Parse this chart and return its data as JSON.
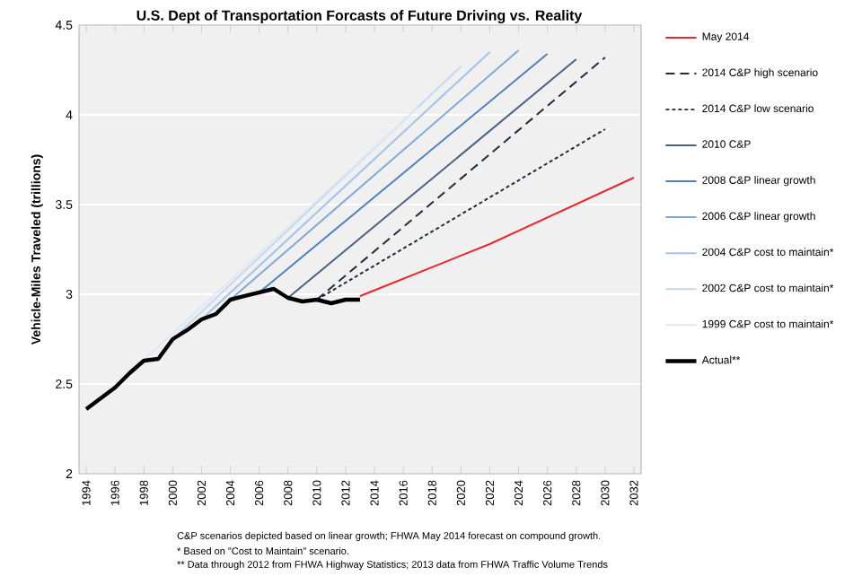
{
  "chart_data": {
    "type": "line",
    "title": "U.S. Dept of Transportation Forcasts of Future Driving vs. Reality",
    "ylabel": "Vehicle-Miles Traveled (trillions)",
    "xlim": [
      1993.5,
      2032.5
    ],
    "xticks": [
      1994,
      1996,
      1998,
      2000,
      2002,
      2004,
      2006,
      2008,
      2010,
      2012,
      2014,
      2016,
      2018,
      2020,
      2022,
      2024,
      2026,
      2028,
      2030,
      2032
    ],
    "ylim": [
      2,
      4.5
    ],
    "yticks": [
      2,
      2.5,
      3,
      3.5,
      4,
      4.5
    ],
    "grid": "y",
    "legend": "right",
    "marker": "none",
    "series": [
      {
        "name": "May 2014",
        "color": "#e8262b",
        "line_style": "solid",
        "x": [
          2013,
          2022,
          2032
        ],
        "values": [
          2.99,
          3.28,
          3.65
        ]
      },
      {
        "name": "2014 C&P high scenario",
        "color": "#1f2d3d",
        "line_style": "dashed",
        "x": [
          2010,
          2030
        ],
        "values": [
          2.97,
          4.32
        ]
      },
      {
        "name": "2014 C&P low scenario",
        "color": "#1f2d3d",
        "line_style": "dotted",
        "x": [
          2010,
          2030
        ],
        "values": [
          2.97,
          3.92
        ]
      },
      {
        "name": "2010 C&P",
        "color": "#4a6382",
        "line_style": "solid",
        "x": [
          2008,
          2028
        ],
        "values": [
          2.98,
          4.31
        ]
      },
      {
        "name": "2008 C&P linear growth",
        "color": "#4f81bd",
        "line_style": "solid",
        "x": [
          2006,
          2026
        ],
        "values": [
          3.01,
          4.34
        ]
      },
      {
        "name": "2006 C&P linear growth",
        "color": "#7fa7d6",
        "line_style": "solid",
        "x": [
          2004,
          2024
        ],
        "values": [
          2.97,
          4.36
        ]
      },
      {
        "name": "2004 C&P cost to maintain*",
        "color": "#a3c2e6",
        "line_style": "solid",
        "x": [
          2002,
          2022
        ],
        "values": [
          2.86,
          4.35
        ]
      },
      {
        "name": "2002 C&P cost to maintain*",
        "color": "#c5d8ef",
        "line_style": "solid",
        "x": [
          2000,
          2020
        ],
        "values": [
          2.75,
          4.27
        ]
      },
      {
        "name": "1999 C&P cost to maintain*",
        "color": "#dde8f5",
        "line_style": "solid",
        "x": [
          1997,
          2017
        ],
        "values": [
          2.56,
          4.04
        ]
      },
      {
        "name": "Actual**",
        "color": "#000000",
        "line_style": "solid",
        "x": [
          1994,
          1995,
          1996,
          1997,
          1998,
          1999,
          2000,
          2001,
          2002,
          2003,
          2004,
          2005,
          2006,
          2007,
          2008,
          2009,
          2010,
          2011,
          2012,
          2013
        ],
        "values": [
          2.36,
          2.42,
          2.48,
          2.56,
          2.63,
          2.64,
          2.75,
          2.8,
          2.86,
          2.89,
          2.97,
          2.99,
          3.01,
          3.03,
          2.98,
          2.96,
          2.97,
          2.95,
          2.97,
          2.97
        ]
      }
    ],
    "annotations": [
      "C&P scenarios depicted based on linear growth; FHWA May 2014 forecast on compound growth.",
      "* Based on \"Cost to Maintain\" scenario.",
      "** Data through 2012 from FHWA Highway Statistics; 2013 data from FHWA Traffic Volume Trends"
    ]
  }
}
